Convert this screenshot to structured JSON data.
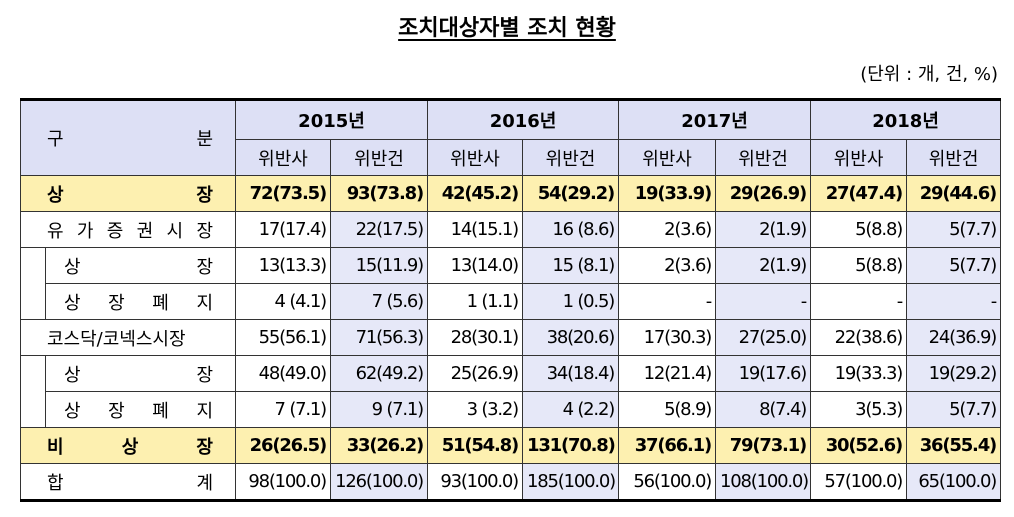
{
  "title": "조치대상자별 조치 현황",
  "unit": "(단위 : 개, 건, %)",
  "header": {
    "corner": "구 분",
    "years": [
      "2015년",
      "2016년",
      "2017년",
      "2018년"
    ],
    "subheaders": [
      "위반사",
      "위반건",
      "위반사",
      "위반건",
      "위반사",
      "위반건",
      "위반사",
      "위반건"
    ]
  },
  "rows": [
    {
      "label": "상 장",
      "cells": [
        "72(73.5)",
        "93(73.8)",
        "42(45.2)",
        "54(29.2)",
        "19(33.9)",
        "29(26.9)",
        "27(47.4)",
        "29(44.6)"
      ]
    },
    {
      "label": "유 가 증 권 시 장",
      "cells": [
        "17(17.4)",
        "22(17.5)",
        "14(15.1)",
        "16 (8.6)",
        "2(3.6)",
        "2(1.9)",
        "5(8.8)",
        "5(7.7)"
      ]
    },
    {
      "label": "상 장",
      "cells": [
        "13(13.3)",
        "15(11.9)",
        "13(14.0)",
        "15 (8.1)",
        "2(3.6)",
        "2(1.9)",
        "5(8.8)",
        "5(7.7)"
      ]
    },
    {
      "label": "상 장 폐 지",
      "cells": [
        "4 (4.1)",
        "7 (5.6)",
        "1 (1.1)",
        "1 (0.5)",
        "-",
        "-",
        "-",
        "-"
      ]
    },
    {
      "label": "코스닥/코넥스시장",
      "cells": [
        "55(56.1)",
        "71(56.3)",
        "28(30.1)",
        "38(20.6)",
        "17(30.3)",
        "27(25.0)",
        "22(38.6)",
        "24(36.9)"
      ]
    },
    {
      "label": "상 장",
      "cells": [
        "48(49.0)",
        "62(49.2)",
        "25(26.9)",
        "34(18.4)",
        "12(21.4)",
        "19(17.6)",
        "19(33.3)",
        "19(29.2)"
      ]
    },
    {
      "label": "상 장 폐 지",
      "cells": [
        "7 (7.1)",
        "9 (7.1)",
        "3 (3.2)",
        "4 (2.2)",
        "5(8.9)",
        "8(7.4)",
        "3(5.3)",
        "5(7.7)"
      ]
    },
    {
      "label": "비 상 장",
      "cells": [
        "26(26.5)",
        "33(26.2)",
        "51(54.8)",
        "131(70.8)",
        "37(66.1)",
        "79(73.1)",
        "30(52.6)",
        "36(55.4)"
      ]
    },
    {
      "label": "합 계",
      "cells": [
        "98(100.0)",
        "126(100.0)",
        "93(100.0)",
        "185(100.0)",
        "56(100.0)",
        "108(100.0)",
        "57(100.0)",
        "65(100.0)"
      ]
    }
  ]
}
